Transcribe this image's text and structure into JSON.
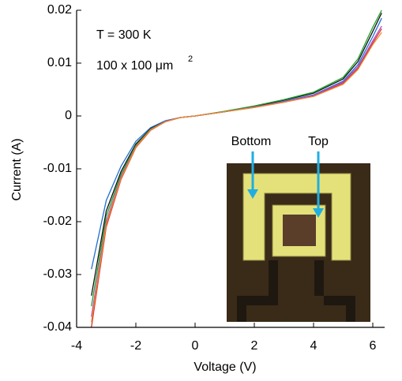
{
  "chart_data": {
    "type": "line",
    "x_label": "Voltage (V)",
    "y_label": "Current (A)",
    "annotations": {
      "temperature": "T = 300 K",
      "area": "100 x 100 μm",
      "area_exponent": "2",
      "inset_bottom": "Bottom",
      "inset_top": "Top"
    },
    "xlim": [
      -4,
      6.4
    ],
    "xticks": [
      -4,
      -2,
      0,
      2,
      4,
      6
    ],
    "ylim": [
      -0.04,
      0.02
    ],
    "yticks": [
      0.02,
      0.01,
      0,
      -0.01,
      -0.02,
      -0.03,
      -0.04
    ],
    "x": [
      -3.5,
      -3,
      -2.5,
      -2,
      -1.5,
      -1,
      -0.5,
      0,
      1,
      2,
      3,
      4,
      5,
      5.5,
      6,
      6.3
    ],
    "series": [
      {
        "color": "#1f6fd1",
        "values": [
          -0.029,
          -0.016,
          -0.0095,
          -0.0048,
          -0.0022,
          -0.0009,
          -0.0003,
          0,
          0.0008,
          0.0017,
          0.0028,
          0.004,
          0.0066,
          0.0097,
          0.015,
          0.0185
        ]
      },
      {
        "color": "#111111",
        "values": [
          -0.034,
          -0.018,
          -0.0105,
          -0.0053,
          -0.0024,
          -0.001,
          -0.0003,
          0,
          0.0008,
          0.0018,
          0.003,
          0.0043,
          0.007,
          0.0103,
          0.016,
          0.0195
        ]
      },
      {
        "color": "#22a32a",
        "values": [
          -0.036,
          -0.019,
          -0.011,
          -0.0056,
          -0.0025,
          -0.001,
          -0.0003,
          0,
          0.0009,
          0.0019,
          0.0031,
          0.0045,
          0.0073,
          0.0108,
          0.0168,
          0.02
        ]
      },
      {
        "color": "#e0302a",
        "values": [
          -0.04,
          -0.021,
          -0.012,
          -0.006,
          -0.0027,
          -0.0011,
          -0.0003,
          0,
          0.0008,
          0.0016,
          0.0026,
          0.0038,
          0.0062,
          0.009,
          0.0138,
          0.0165
        ]
      },
      {
        "color": "#b04ac8",
        "values": [
          -0.038,
          -0.02,
          -0.0115,
          -0.0058,
          -0.0026,
          -0.001,
          -0.0003,
          0,
          0.0008,
          0.0017,
          0.0027,
          0.0039,
          0.0064,
          0.0093,
          0.0142,
          0.017
        ]
      },
      {
        "color": "#e88a2a",
        "values": [
          -0.039,
          -0.0205,
          -0.0118,
          -0.0059,
          -0.0026,
          -0.0011,
          -0.0003,
          0,
          0.0008,
          0.0016,
          0.0026,
          0.0037,
          0.006,
          0.0088,
          0.0135,
          0.0158
        ]
      }
    ]
  }
}
